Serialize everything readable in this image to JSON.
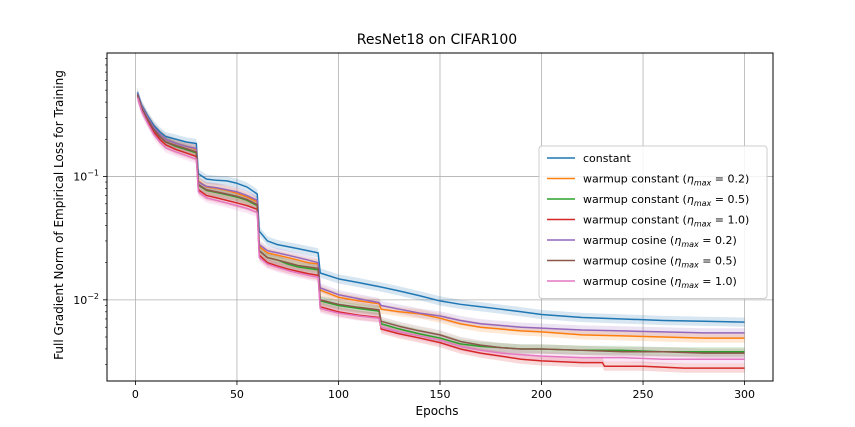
{
  "chart_data": {
    "type": "line",
    "title": "ResNet18 on CIFAR100",
    "xlabel": "Epochs",
    "ylabel": "Full Gradient Norm of Empirical Loss for Training",
    "xlim": [
      -14,
      314
    ],
    "ylim": [
      0.0022,
      1.0
    ],
    "yscale": "log",
    "grid": true,
    "legend_position": "right",
    "x_ticks": [
      0,
      50,
      100,
      150,
      200,
      250,
      300
    ],
    "x_tick_labels": [
      "0",
      "50",
      "100",
      "150",
      "200",
      "250",
      "300"
    ],
    "y_ticks": [
      0.01,
      0.1
    ],
    "y_tick_labels": [
      {
        "base": "10",
        "exp": "−2"
      },
      {
        "base": "10",
        "exp": "−1"
      }
    ],
    "series": [
      {
        "name": "constant",
        "legend_main": "constant",
        "legend_sym": "",
        "legend_val": "",
        "color": "#1f77b4",
        "points": [
          [
            1,
            0.48
          ],
          [
            3,
            0.38
          ],
          [
            6,
            0.31
          ],
          [
            9,
            0.26
          ],
          [
            12,
            0.23
          ],
          [
            15,
            0.21
          ],
          [
            20,
            0.2
          ],
          [
            25,
            0.19
          ],
          [
            30,
            0.185
          ],
          [
            31,
            0.105
          ],
          [
            35,
            0.095
          ],
          [
            40,
            0.093
          ],
          [
            45,
            0.092
          ],
          [
            50,
            0.088
          ],
          [
            55,
            0.082
          ],
          [
            60,
            0.072
          ],
          [
            61,
            0.036
          ],
          [
            65,
            0.03
          ],
          [
            70,
            0.028
          ],
          [
            75,
            0.027
          ],
          [
            80,
            0.026
          ],
          [
            85,
            0.025
          ],
          [
            90,
            0.024
          ],
          [
            91,
            0.0165
          ],
          [
            100,
            0.0148
          ],
          [
            110,
            0.0138
          ],
          [
            120,
            0.0128
          ],
          [
            130,
            0.0118
          ],
          [
            140,
            0.0108
          ],
          [
            150,
            0.0098
          ],
          [
            160,
            0.0092
          ],
          [
            170,
            0.0088
          ],
          [
            180,
            0.0084
          ],
          [
            190,
            0.008
          ],
          [
            200,
            0.0076
          ],
          [
            220,
            0.0072
          ],
          [
            240,
            0.007
          ],
          [
            260,
            0.0068
          ],
          [
            280,
            0.0067
          ],
          [
            300,
            0.0066
          ]
        ]
      },
      {
        "name": "warmup constant (η_max = 0.2)",
        "legend_main": "warmup constant (",
        "legend_sym": "η",
        "legend_sub": "max",
        "legend_val": " = 0.2)",
        "color": "#ff7f0e",
        "points": [
          [
            1,
            0.46
          ],
          [
            3,
            0.37
          ],
          [
            6,
            0.3
          ],
          [
            9,
            0.25
          ],
          [
            12,
            0.22
          ],
          [
            15,
            0.2
          ],
          [
            20,
            0.185
          ],
          [
            25,
            0.175
          ],
          [
            30,
            0.165
          ],
          [
            31,
            0.092
          ],
          [
            35,
            0.082
          ],
          [
            40,
            0.08
          ],
          [
            45,
            0.077
          ],
          [
            50,
            0.073
          ],
          [
            55,
            0.068
          ],
          [
            60,
            0.062
          ],
          [
            61,
            0.027
          ],
          [
            65,
            0.024
          ],
          [
            70,
            0.023
          ],
          [
            75,
            0.022
          ],
          [
            80,
            0.021
          ],
          [
            85,
            0.02
          ],
          [
            90,
            0.0195
          ],
          [
            91,
            0.012
          ],
          [
            100,
            0.0105
          ],
          [
            110,
            0.0098
          ],
          [
            120,
            0.0093
          ],
          [
            121,
            0.0084
          ],
          [
            130,
            0.008
          ],
          [
            140,
            0.0077
          ],
          [
            150,
            0.0071
          ],
          [
            160,
            0.0064
          ],
          [
            170,
            0.006
          ],
          [
            180,
            0.0058
          ],
          [
            190,
            0.0056
          ],
          [
            200,
            0.0055
          ],
          [
            220,
            0.0052
          ],
          [
            240,
            0.0051
          ],
          [
            260,
            0.005
          ],
          [
            280,
            0.0049
          ],
          [
            300,
            0.0049
          ]
        ]
      },
      {
        "name": "warmup constant (η_max = 0.5)",
        "legend_main": "warmup constant (",
        "legend_sym": "η",
        "legend_sub": "max",
        "legend_val": " = 0.5)",
        "color": "#2ca02c",
        "points": [
          [
            1,
            0.45
          ],
          [
            3,
            0.36
          ],
          [
            6,
            0.29
          ],
          [
            9,
            0.24
          ],
          [
            12,
            0.21
          ],
          [
            15,
            0.19
          ],
          [
            20,
            0.175
          ],
          [
            25,
            0.165
          ],
          [
            30,
            0.155
          ],
          [
            31,
            0.085
          ],
          [
            35,
            0.077
          ],
          [
            40,
            0.074
          ],
          [
            45,
            0.071
          ],
          [
            50,
            0.068
          ],
          [
            55,
            0.064
          ],
          [
            60,
            0.058
          ],
          [
            61,
            0.025
          ],
          [
            65,
            0.022
          ],
          [
            70,
            0.021
          ],
          [
            75,
            0.0195
          ],
          [
            80,
            0.0185
          ],
          [
            85,
            0.018
          ],
          [
            90,
            0.0175
          ],
          [
            91,
            0.0098
          ],
          [
            100,
            0.009
          ],
          [
            110,
            0.0085
          ],
          [
            120,
            0.0081
          ],
          [
            121,
            0.0064
          ],
          [
            130,
            0.0058
          ],
          [
            140,
            0.0053
          ],
          [
            150,
            0.0049
          ],
          [
            160,
            0.0044
          ],
          [
            170,
            0.0042
          ],
          [
            180,
            0.0041
          ],
          [
            190,
            0.004
          ],
          [
            200,
            0.004
          ],
          [
            220,
            0.0039
          ],
          [
            240,
            0.0039
          ],
          [
            260,
            0.0038
          ],
          [
            280,
            0.0038
          ],
          [
            300,
            0.0038
          ]
        ]
      },
      {
        "name": "warmup constant (η_max = 1.0)",
        "legend_main": "warmup constant (",
        "legend_sym": "η",
        "legend_sub": "max",
        "legend_val": " = 1.0)",
        "color": "#d62728",
        "points": [
          [
            1,
            0.44
          ],
          [
            3,
            0.35
          ],
          [
            6,
            0.28
          ],
          [
            9,
            0.23
          ],
          [
            12,
            0.2
          ],
          [
            15,
            0.18
          ],
          [
            20,
            0.165
          ],
          [
            25,
            0.155
          ],
          [
            30,
            0.145
          ],
          [
            31,
            0.078
          ],
          [
            35,
            0.07
          ],
          [
            40,
            0.067
          ],
          [
            45,
            0.064
          ],
          [
            50,
            0.061
          ],
          [
            55,
            0.058
          ],
          [
            60,
            0.054
          ],
          [
            61,
            0.023
          ],
          [
            65,
            0.02
          ],
          [
            70,
            0.0188
          ],
          [
            75,
            0.0178
          ],
          [
            80,
            0.017
          ],
          [
            85,
            0.0163
          ],
          [
            90,
            0.0158
          ],
          [
            91,
            0.0088
          ],
          [
            100,
            0.008
          ],
          [
            110,
            0.0075
          ],
          [
            120,
            0.0072
          ],
          [
            121,
            0.0058
          ],
          [
            130,
            0.0053
          ],
          [
            140,
            0.0049
          ],
          [
            150,
            0.0045
          ],
          [
            160,
            0.004
          ],
          [
            170,
            0.0037
          ],
          [
            180,
            0.0035
          ],
          [
            190,
            0.0033
          ],
          [
            200,
            0.0032
          ],
          [
            220,
            0.0031
          ],
          [
            230,
            0.0031
          ],
          [
            231,
            0.0029
          ],
          [
            250,
            0.0029
          ],
          [
            270,
            0.0028
          ],
          [
            300,
            0.0028
          ]
        ]
      },
      {
        "name": "warmup cosine (η_max = 0.2)",
        "legend_main": "warmup cosine (",
        "legend_sym": "η",
        "legend_sub": "max",
        "legend_val": " = 0.2)",
        "color": "#9467bd",
        "points": [
          [
            1,
            0.47
          ],
          [
            3,
            0.37
          ],
          [
            6,
            0.3
          ],
          [
            9,
            0.25
          ],
          [
            12,
            0.22
          ],
          [
            15,
            0.2
          ],
          [
            20,
            0.185
          ],
          [
            25,
            0.175
          ],
          [
            30,
            0.168
          ],
          [
            31,
            0.09
          ],
          [
            35,
            0.083
          ],
          [
            40,
            0.081
          ],
          [
            45,
            0.078
          ],
          [
            50,
            0.075
          ],
          [
            55,
            0.07
          ],
          [
            60,
            0.064
          ],
          [
            61,
            0.028
          ],
          [
            65,
            0.025
          ],
          [
            70,
            0.024
          ],
          [
            75,
            0.023
          ],
          [
            80,
            0.022
          ],
          [
            85,
            0.021
          ],
          [
            90,
            0.02
          ],
          [
            91,
            0.0125
          ],
          [
            100,
            0.011
          ],
          [
            110,
            0.0102
          ],
          [
            120,
            0.0095
          ],
          [
            121,
            0.009
          ],
          [
            130,
            0.0084
          ],
          [
            140,
            0.0078
          ],
          [
            150,
            0.0074
          ],
          [
            160,
            0.0068
          ],
          [
            170,
            0.0064
          ],
          [
            180,
            0.0062
          ],
          [
            190,
            0.006
          ],
          [
            200,
            0.0059
          ],
          [
            220,
            0.0057
          ],
          [
            240,
            0.0056
          ],
          [
            260,
            0.0055
          ],
          [
            280,
            0.0054
          ],
          [
            300,
            0.0054
          ]
        ]
      },
      {
        "name": "warmup cosine (η_max = 0.5)",
        "legend_main": "warmup cosine (",
        "legend_sym": "η",
        "legend_sub": "max",
        "legend_val": " = 0.5)",
        "color": "#8c564b",
        "points": [
          [
            1,
            0.46
          ],
          [
            3,
            0.36
          ],
          [
            6,
            0.29
          ],
          [
            9,
            0.24
          ],
          [
            12,
            0.21
          ],
          [
            15,
            0.19
          ],
          [
            20,
            0.178
          ],
          [
            25,
            0.168
          ],
          [
            30,
            0.158
          ],
          [
            31,
            0.086
          ],
          [
            35,
            0.078
          ],
          [
            40,
            0.075
          ],
          [
            45,
            0.072
          ],
          [
            50,
            0.069
          ],
          [
            55,
            0.065
          ],
          [
            60,
            0.059
          ],
          [
            61,
            0.025
          ],
          [
            65,
            0.022
          ],
          [
            70,
            0.021
          ],
          [
            75,
            0.02
          ],
          [
            80,
            0.019
          ],
          [
            85,
            0.0185
          ],
          [
            90,
            0.018
          ],
          [
            91,
            0.01
          ],
          [
            100,
            0.0092
          ],
          [
            110,
            0.0087
          ],
          [
            120,
            0.0083
          ],
          [
            121,
            0.0067
          ],
          [
            130,
            0.0061
          ],
          [
            140,
            0.0056
          ],
          [
            150,
            0.0052
          ],
          [
            160,
            0.0046
          ],
          [
            170,
            0.0043
          ],
          [
            180,
            0.0041
          ],
          [
            190,
            0.004
          ],
          [
            200,
            0.004
          ],
          [
            220,
            0.0039
          ],
          [
            240,
            0.0038
          ],
          [
            260,
            0.0038
          ],
          [
            280,
            0.0037
          ],
          [
            300,
            0.0037
          ]
        ]
      },
      {
        "name": "warmup cosine (η_max = 1.0)",
        "legend_main": "warmup cosine (",
        "legend_sym": "η",
        "legend_sub": "max",
        "legend_val": " = 1.0)",
        "color": "#e377c2",
        "points": [
          [
            1,
            0.44
          ],
          [
            3,
            0.34
          ],
          [
            6,
            0.27
          ],
          [
            9,
            0.22
          ],
          [
            12,
            0.19
          ],
          [
            15,
            0.17
          ],
          [
            20,
            0.158
          ],
          [
            25,
            0.148
          ],
          [
            30,
            0.138
          ],
          [
            31,
            0.075
          ],
          [
            35,
            0.067
          ],
          [
            40,
            0.064
          ],
          [
            45,
            0.061
          ],
          [
            50,
            0.058
          ],
          [
            55,
            0.055
          ],
          [
            60,
            0.051
          ],
          [
            61,
            0.022
          ],
          [
            65,
            0.0195
          ],
          [
            70,
            0.0183
          ],
          [
            75,
            0.0173
          ],
          [
            80,
            0.0165
          ],
          [
            85,
            0.0158
          ],
          [
            90,
            0.0152
          ],
          [
            91,
            0.0085
          ],
          [
            100,
            0.0078
          ],
          [
            110,
            0.0074
          ],
          [
            120,
            0.0071
          ],
          [
            121,
            0.006
          ],
          [
            130,
            0.0055
          ],
          [
            140,
            0.0051
          ],
          [
            150,
            0.0047
          ],
          [
            160,
            0.0042
          ],
          [
            170,
            0.0039
          ],
          [
            180,
            0.0037
          ],
          [
            190,
            0.0036
          ],
          [
            200,
            0.0035
          ],
          [
            220,
            0.0034
          ],
          [
            240,
            0.0034
          ],
          [
            260,
            0.0033
          ],
          [
            280,
            0.0033
          ],
          [
            300,
            0.0033
          ]
        ]
      }
    ]
  }
}
